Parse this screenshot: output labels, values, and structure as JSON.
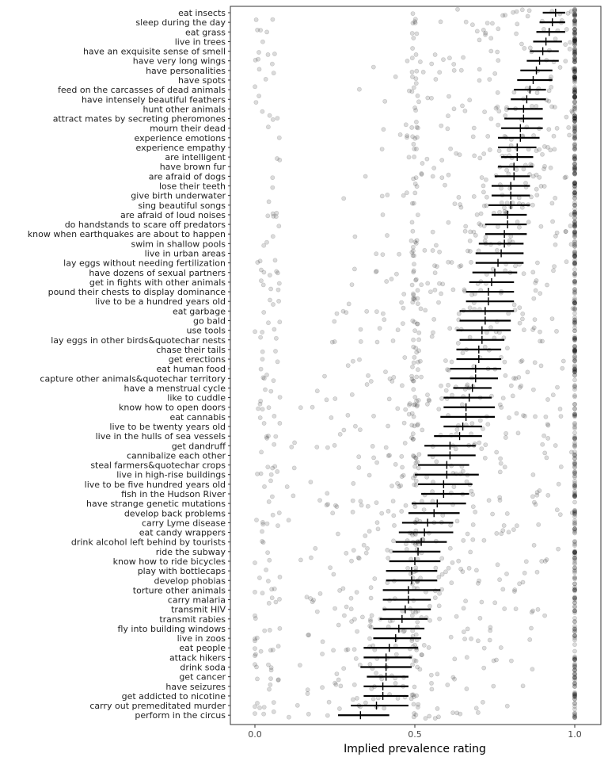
{
  "chart_data": {
    "type": "scatter",
    "title": "",
    "xlabel": "Implied prevalence rating",
    "ylabel": "",
    "xlim": [
      0,
      1
    ],
    "xticks": [
      0,
      0.5,
      1
    ],
    "xtick_labels": [
      "0.0",
      "0.5",
      "1.0"
    ],
    "grid": false,
    "colors": {
      "points": "#000000",
      "intervals": "#000000"
    },
    "categories": [
      "eat insects",
      "sleep during the day",
      "eat grass",
      "live in trees",
      "have an exquisite sense of smell",
      "have very long wings",
      "have personalities",
      "have spots",
      "feed on the carcasses of dead animals",
      "have intensely beautiful feathers",
      "hunt other animals",
      "attract mates by secreting pheromones",
      "mourn their dead",
      "experience emotions",
      "experience empathy",
      "are intelligent",
      "have brown fur",
      "are afraid of dogs",
      "lose their teeth",
      "give birth underwater",
      "sing beautiful songs",
      "are afraid of loud noises",
      "do handstands to scare off predators",
      "know when earthquakes are about to happen",
      "swim in shallow pools",
      "live in urban areas",
      "lay eggs without needing fertilization",
      "have dozens of sexual partners",
      "get in fights with other animals",
      "pound their chests to display dominance",
      "live to be a hundred years old",
      "eat garbage",
      "go bald",
      "use tools",
      "lay eggs in other birds&quotechar nests",
      "chase their tails",
      "get erections",
      "eat human food",
      "capture other animals&quotechar territory",
      "have a menstrual cycle",
      "like to cuddle",
      "know how to open doors",
      "eat cannabis",
      "live to be twenty years old",
      "live in the hulls of sea vessels",
      "get dandruff",
      "cannibalize each other",
      "steal farmers&quotechar crops",
      "live in high-rise buildings",
      "live to be five hundred years old",
      "fish in the Hudson River",
      "have strange genetic mutations",
      "develop back problems",
      "carry Lyme disease",
      "eat candy wrappers",
      "drink alcohol left behind by tourists",
      "ride the subway",
      "know how to ride bicycles",
      "play with bottlecaps",
      "develop phobias",
      "torture other animals",
      "carry malaria",
      "transmit HIV",
      "transmit rabies",
      "fly into building windows",
      "live in zoos",
      "eat people",
      "attack hikers",
      "drink soda",
      "get cancer",
      "have seizures",
      "get addicted to nicotine",
      "carry out premeditated murder",
      "perform in the circus"
    ],
    "means": [
      0.94,
      0.93,
      0.92,
      0.91,
      0.9,
      0.89,
      0.88,
      0.87,
      0.86,
      0.85,
      0.84,
      0.84,
      0.83,
      0.83,
      0.82,
      0.82,
      0.81,
      0.81,
      0.8,
      0.8,
      0.8,
      0.79,
      0.79,
      0.78,
      0.78,
      0.77,
      0.76,
      0.75,
      0.74,
      0.73,
      0.73,
      0.72,
      0.72,
      0.71,
      0.71,
      0.7,
      0.7,
      0.69,
      0.69,
      0.68,
      0.67,
      0.66,
      0.66,
      0.65,
      0.64,
      0.61,
      0.61,
      0.6,
      0.6,
      0.59,
      0.59,
      0.57,
      0.56,
      0.54,
      0.53,
      0.52,
      0.51,
      0.5,
      0.49,
      0.49,
      0.48,
      0.48,
      0.47,
      0.46,
      0.45,
      0.44,
      0.42,
      0.41,
      0.41,
      0.41,
      0.4,
      0.4,
      0.38,
      0.33
    ],
    "ci_low": [
      0.9,
      0.89,
      0.88,
      0.87,
      0.86,
      0.85,
      0.83,
      0.82,
      0.81,
      0.8,
      0.79,
      0.78,
      0.77,
      0.76,
      0.76,
      0.77,
      0.76,
      0.75,
      0.74,
      0.74,
      0.73,
      0.74,
      0.72,
      0.72,
      0.7,
      0.69,
      0.69,
      0.68,
      0.67,
      0.66,
      0.66,
      0.64,
      0.64,
      0.63,
      0.64,
      0.63,
      0.63,
      0.61,
      0.61,
      0.62,
      0.59,
      0.59,
      0.58,
      0.59,
      0.56,
      0.53,
      0.54,
      0.51,
      0.5,
      0.51,
      0.52,
      0.49,
      0.48,
      0.46,
      0.45,
      0.44,
      0.43,
      0.42,
      0.41,
      0.41,
      0.4,
      0.4,
      0.4,
      0.39,
      0.37,
      0.37,
      0.34,
      0.34,
      0.33,
      0.35,
      0.34,
      0.34,
      0.3,
      0.26
    ],
    "ci_high": [
      0.97,
      0.97,
      0.97,
      0.96,
      0.95,
      0.95,
      0.93,
      0.93,
      0.91,
      0.91,
      0.9,
      0.9,
      0.9,
      0.89,
      0.88,
      0.87,
      0.87,
      0.86,
      0.86,
      0.86,
      0.86,
      0.85,
      0.85,
      0.85,
      0.84,
      0.84,
      0.84,
      0.82,
      0.81,
      0.81,
      0.81,
      0.81,
      0.8,
      0.8,
      0.78,
      0.77,
      0.77,
      0.77,
      0.76,
      0.74,
      0.74,
      0.75,
      0.75,
      0.71,
      0.71,
      0.69,
      0.69,
      0.67,
      0.7,
      0.68,
      0.67,
      0.66,
      0.64,
      0.62,
      0.62,
      0.6,
      0.58,
      0.58,
      0.57,
      0.57,
      0.58,
      0.55,
      0.55,
      0.54,
      0.53,
      0.52,
      0.51,
      0.49,
      0.49,
      0.48,
      0.48,
      0.48,
      0.48,
      0.42
    ]
  }
}
